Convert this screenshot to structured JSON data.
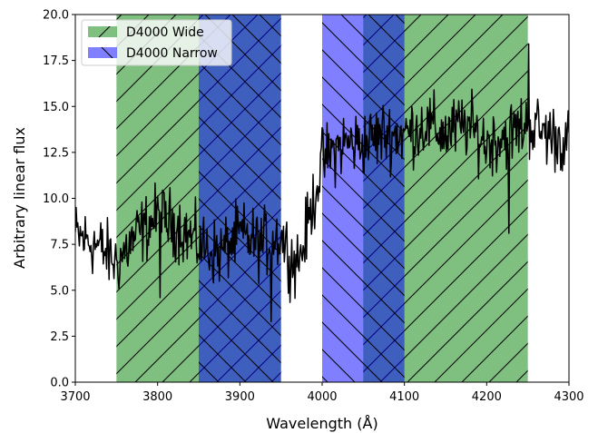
{
  "chart_data": {
    "type": "line",
    "xlabel": "Wavelength (Å)",
    "ylabel": "Arbitrary linear flux",
    "xlim": [
      3700,
      4300
    ],
    "ylim": [
      0,
      20
    ],
    "xticks": [
      "3700",
      "3800",
      "3900",
      "4000",
      "4100",
      "4200",
      "4300"
    ],
    "yticks": [
      "0.0",
      "2.5",
      "5.0",
      "7.5",
      "10.0",
      "12.5",
      "15.0",
      "17.5",
      "20.0"
    ],
    "legend_position": "top-left",
    "bands": [
      {
        "name": "D4000 Wide",
        "color": "#008000",
        "alpha": 0.5,
        "hatch": "/",
        "ranges": [
          [
            3750,
            3950
          ],
          [
            4050,
            4250
          ]
        ]
      },
      {
        "name": "D4000 Narrow",
        "color": "#0000ff",
        "alpha": 0.5,
        "hatch": "\\",
        "ranges": [
          [
            3850,
            3950
          ],
          [
            4000,
            4100
          ]
        ]
      }
    ],
    "series": [
      {
        "color": "#000000",
        "anchors": {
          "x": [
            3700,
            3725,
            3750,
            3775,
            3800,
            3825,
            3850,
            3875,
            3900,
            3925,
            3950,
            3965,
            3975,
            4000,
            4025,
            4050,
            4075,
            4100,
            4125,
            4150,
            4175,
            4200,
            4225,
            4250,
            4275,
            4300
          ],
          "y": [
            8.0,
            7.5,
            6.5,
            8.0,
            9.0,
            8.5,
            7.5,
            7.0,
            8.0,
            7.5,
            8.0,
            6.5,
            7.0,
            12.0,
            13.0,
            13.0,
            13.5,
            13.5,
            14.0,
            13.5,
            14.0,
            13.0,
            13.5,
            14.0,
            13.5,
            13.0
          ]
        },
        "noise": 1.8,
        "spikes": [
          {
            "x": 3938,
            "y": 3.3
          },
          {
            "x": 4251,
            "y": 18.4
          },
          {
            "x": 4227,
            "y": 8.1
          },
          {
            "x": 3803,
            "y": 4.6
          }
        ]
      }
    ]
  }
}
